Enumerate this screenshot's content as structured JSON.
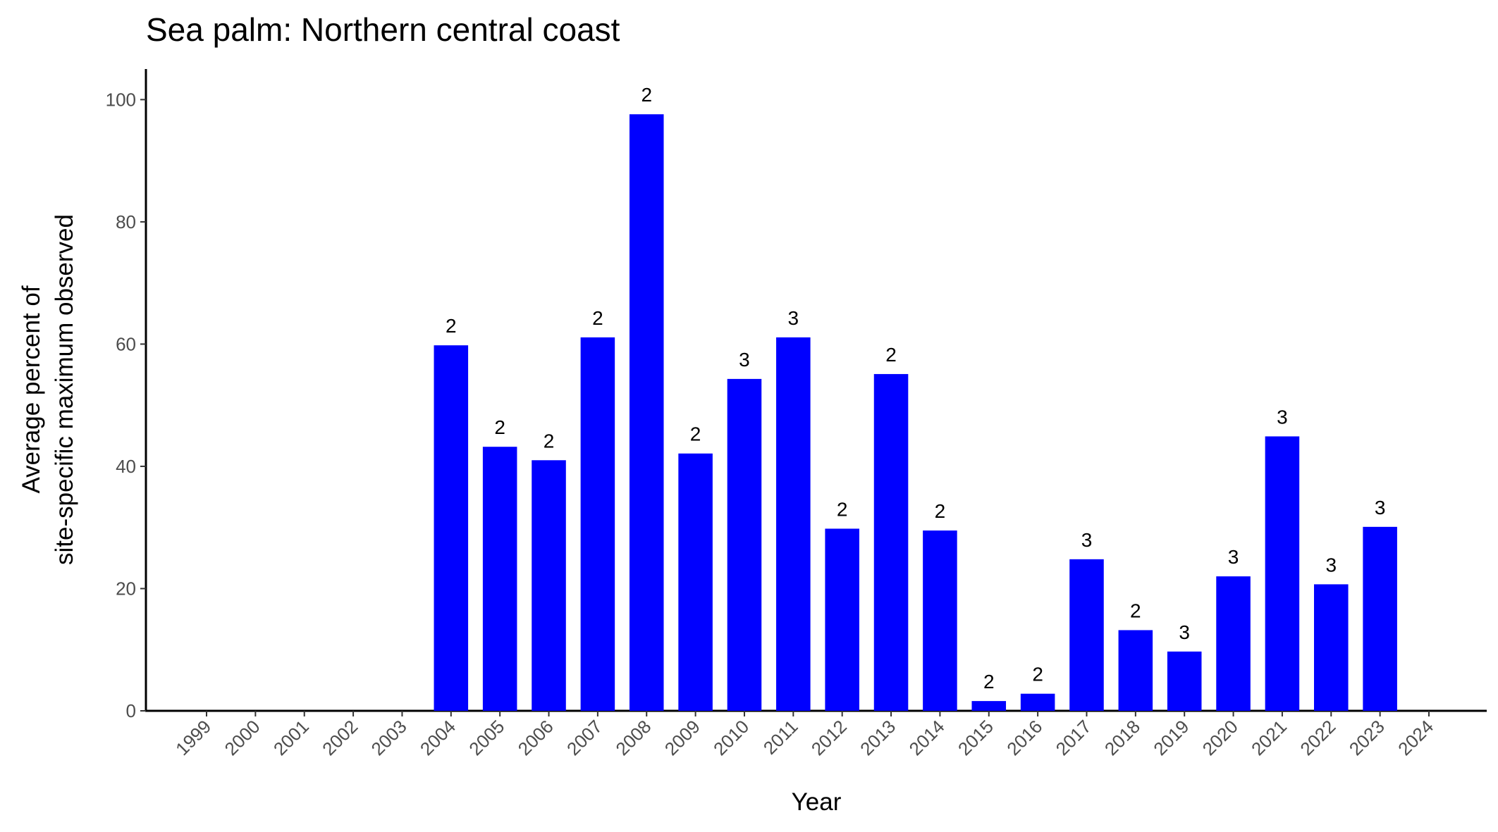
{
  "chart_data": {
    "type": "bar",
    "title": "Sea palm: Northern central coast",
    "x_label": "Year",
    "y_label": [
      "Average percent of",
      "site-specific maximum observed"
    ],
    "categories": [
      "1999",
      "2000",
      "2001",
      "2002",
      "2003",
      "2004",
      "2005",
      "2006",
      "2007",
      "2008",
      "2009",
      "2010",
      "2011",
      "2012",
      "2013",
      "2014",
      "2015",
      "2016",
      "2017",
      "2018",
      "2019",
      "2020",
      "2021",
      "2022",
      "2023",
      "2024"
    ],
    "values": [
      null,
      null,
      null,
      null,
      null,
      59.8,
      43.2,
      41.0,
      61.1,
      97.6,
      42.1,
      54.3,
      61.1,
      29.8,
      55.1,
      29.5,
      1.6,
      2.8,
      24.8,
      13.2,
      9.7,
      22.0,
      44.9,
      20.7,
      30.1,
      null
    ],
    "annotations": [
      null,
      null,
      null,
      null,
      null,
      "2",
      "2",
      "2",
      "2",
      "2",
      "2",
      "3",
      "3",
      "2",
      "2",
      "2",
      "2",
      "2",
      "3",
      "2",
      "3",
      "3",
      "3",
      "3",
      "3",
      null
    ],
    "color": "#0000ff",
    "ylim": [
      0,
      105
    ],
    "yticks": [
      0,
      20,
      40,
      60,
      80,
      100
    ],
    "grid": false
  }
}
